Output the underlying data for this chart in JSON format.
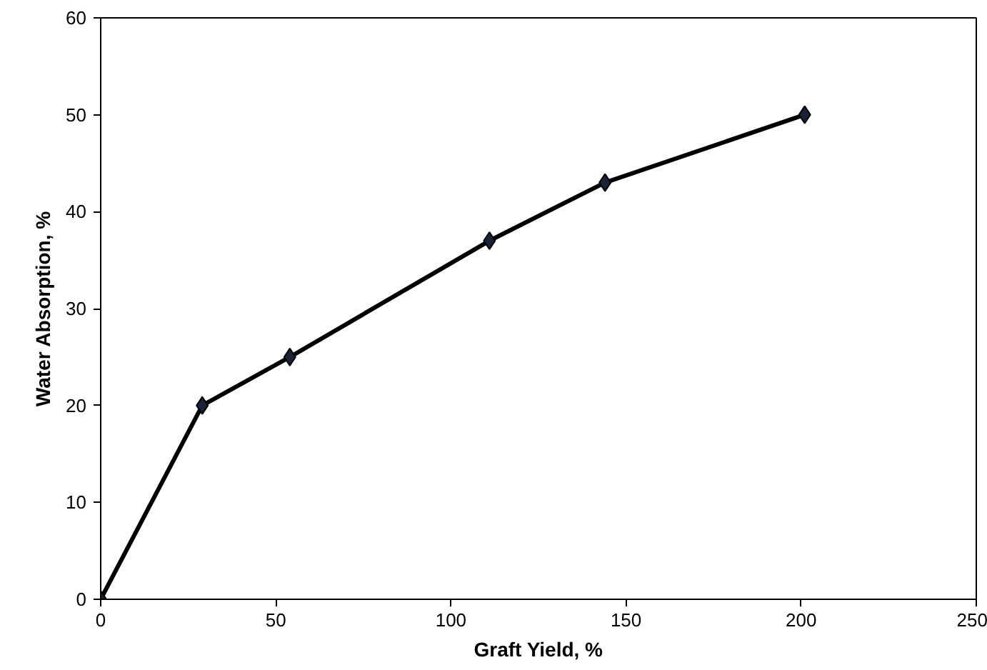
{
  "chart_data": {
    "type": "line",
    "xlabel": "Graft Yield, %",
    "ylabel": "Water Absorption, %",
    "x": [
      0,
      29,
      54,
      111,
      144,
      201
    ],
    "series": [
      {
        "color": "#000000",
        "values": [
          0,
          20,
          25,
          37,
          43,
          50
        ]
      }
    ],
    "xlim": [
      0,
      250
    ],
    "xticks": [
      0,
      50,
      100,
      150,
      200,
      250
    ],
    "ylim": [
      0,
      60
    ],
    "yticks": [
      0,
      10,
      20,
      30,
      40,
      50,
      60
    ],
    "grid": false,
    "marker": "diamond",
    "line_style": "solid"
  }
}
